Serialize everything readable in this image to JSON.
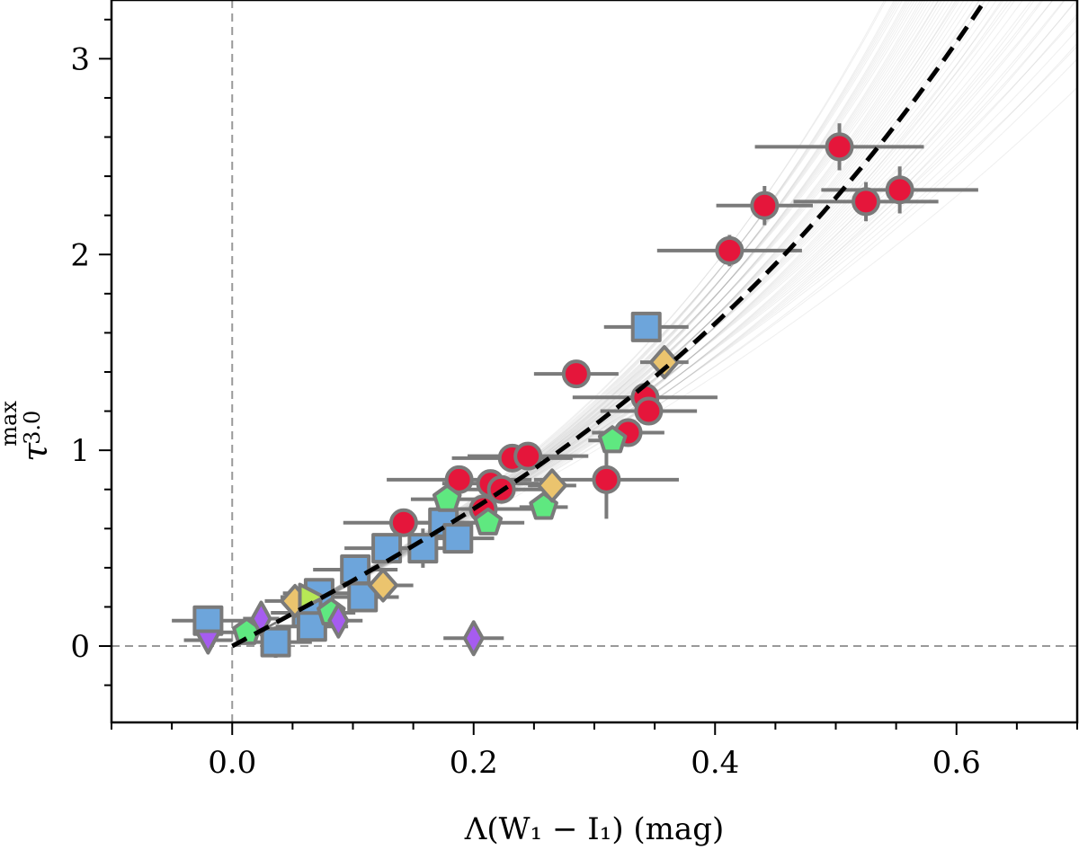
{
  "chart_data": {
    "type": "scatter",
    "title": "",
    "xlabel": "Λ(W₁ − I₁) (mag)",
    "ylabel": {
      "base": "τ",
      "sub": "3.0",
      "sup": "max"
    },
    "xlim": [
      -0.1,
      0.7
    ],
    "ylim": [
      -0.39,
      3.3
    ],
    "xticks": [
      0.0,
      0.2,
      0.4,
      0.6
    ],
    "xtick_labels": [
      "0.0",
      "0.2",
      "0.4",
      "0.6"
    ],
    "yticks": [
      0,
      1,
      2,
      3
    ],
    "ytick_labels": [
      "0",
      "1",
      "2",
      "3"
    ],
    "grid": false,
    "reference_lines": {
      "x": 0,
      "y": 0
    },
    "fit": {
      "name": "best fit",
      "a": 3.3,
      "b": 2.0,
      "style": "dashed",
      "color": "#000000"
    },
    "fit_samples": {
      "count": 60,
      "color": "#7a7a7a"
    },
    "colors": {
      "red": "#e5163b",
      "blue": "#6da5db",
      "green": "#5fe880",
      "yellow": "#ebc46e",
      "purple": "#a65cf0",
      "lime": "#b7e855",
      "edge": "#7a7a7a"
    },
    "series": [
      {
        "name": "red circles",
        "marker": "circle",
        "color": "#e5163b",
        "points": [
          {
            "x": 0.503,
            "y": 2.55,
            "xerr": 0.07,
            "yerr": 0.12
          },
          {
            "x": 0.441,
            "y": 2.25,
            "xerr": 0.04,
            "yerr": 0.1
          },
          {
            "x": 0.525,
            "y": 2.27,
            "xerr": 0.06,
            "yerr": 0.1
          },
          {
            "x": 0.553,
            "y": 2.33,
            "xerr": 0.065,
            "yerr": 0.12
          },
          {
            "x": 0.412,
            "y": 2.02,
            "xerr": 0.06,
            "yerr": 0.08
          },
          {
            "x": 0.285,
            "y": 1.39,
            "xerr": 0.035,
            "yerr": 0.06
          },
          {
            "x": 0.342,
            "y": 1.27,
            "xerr": 0.06,
            "yerr": 0.06
          },
          {
            "x": 0.345,
            "y": 1.2,
            "xerr": 0.04,
            "yerr": 0.06
          },
          {
            "x": 0.328,
            "y": 1.09,
            "xerr": 0.03,
            "yerr": 0.06
          },
          {
            "x": 0.31,
            "y": 0.85,
            "xerr": 0.06,
            "yerr": 0.2
          },
          {
            "x": 0.232,
            "y": 0.96,
            "xerr": 0.05,
            "yerr": 0.06
          },
          {
            "x": 0.245,
            "y": 0.97,
            "xerr": 0.05,
            "yerr": 0.06
          },
          {
            "x": 0.188,
            "y": 0.85,
            "xerr": 0.06,
            "yerr": 0.06
          },
          {
            "x": 0.214,
            "y": 0.83,
            "xerr": 0.04,
            "yerr": 0.06
          },
          {
            "x": 0.223,
            "y": 0.8,
            "xerr": 0.04,
            "yerr": 0.06
          },
          {
            "x": 0.208,
            "y": 0.7,
            "xerr": 0.04,
            "yerr": 0.06
          },
          {
            "x": 0.142,
            "y": 0.63,
            "xerr": 0.05,
            "yerr": 0.06
          }
        ]
      },
      {
        "name": "blue squares",
        "marker": "square",
        "color": "#6da5db",
        "points": [
          {
            "x": 0.343,
            "y": 1.63,
            "xerr": 0.035,
            "yerr": 0.06
          },
          {
            "x": 0.175,
            "y": 0.63,
            "xerr": 0.04,
            "yerr": 0.06
          },
          {
            "x": 0.158,
            "y": 0.5,
            "xerr": 0.04,
            "yerr": 0.1
          },
          {
            "x": 0.187,
            "y": 0.55,
            "xerr": 0.03,
            "yerr": 0.06
          },
          {
            "x": 0.128,
            "y": 0.5,
            "xerr": 0.035,
            "yerr": 0.06
          },
          {
            "x": 0.102,
            "y": 0.39,
            "xerr": 0.035,
            "yerr": 0.06
          },
          {
            "x": 0.108,
            "y": 0.25,
            "xerr": 0.03,
            "yerr": 0.06
          },
          {
            "x": 0.072,
            "y": 0.27,
            "xerr": 0.03,
            "yerr": 0.06
          },
          {
            "x": 0.062,
            "y": 0.17,
            "xerr": 0.03,
            "yerr": 0.06
          },
          {
            "x": 0.066,
            "y": 0.1,
            "xerr": 0.03,
            "yerr": 0.06
          },
          {
            "x": 0.036,
            "y": 0.02,
            "xerr": 0.03,
            "yerr": 0.08
          },
          {
            "x": -0.02,
            "y": 0.13,
            "xerr": 0.03,
            "yerr": 0.06
          }
        ]
      },
      {
        "name": "green pentagons",
        "marker": "pentagon",
        "color": "#5fe880",
        "points": [
          {
            "x": 0.315,
            "y": 1.05,
            "xerr": 0.02,
            "yerr": 0.05
          },
          {
            "x": 0.178,
            "y": 0.75,
            "xerr": 0.03,
            "yerr": 0.05
          },
          {
            "x": 0.212,
            "y": 0.63,
            "xerr": 0.03,
            "yerr": 0.05
          },
          {
            "x": 0.258,
            "y": 0.71,
            "xerr": 0.02,
            "yerr": 0.05
          },
          {
            "x": 0.082,
            "y": 0.17,
            "xerr": 0.02,
            "yerr": 0.04
          },
          {
            "x": 0.012,
            "y": 0.07,
            "xerr": 0.02,
            "yerr": 0.04
          }
        ]
      },
      {
        "name": "yellow diamonds",
        "marker": "diamond",
        "color": "#ebc46e",
        "points": [
          {
            "x": 0.358,
            "y": 1.45,
            "xerr": 0.02,
            "yerr": 0.05
          },
          {
            "x": 0.265,
            "y": 0.82,
            "xerr": 0.02,
            "yerr": 0.05
          },
          {
            "x": 0.125,
            "y": 0.31,
            "xerr": 0.025,
            "yerr": 0.05
          },
          {
            "x": 0.052,
            "y": 0.23,
            "xerr": 0.025,
            "yerr": 0.05
          }
        ]
      },
      {
        "name": "purple diamonds",
        "marker": "thin-diamond",
        "color": "#a65cf0",
        "points": [
          {
            "x": 0.2,
            "y": 0.04,
            "xerr": 0.025,
            "yerr": 0.03
          },
          {
            "x": 0.088,
            "y": 0.13,
            "xerr": 0.02,
            "yerr": 0.04
          },
          {
            "x": 0.024,
            "y": 0.14,
            "xerr": 0.015,
            "yerr": 0.03
          }
        ]
      },
      {
        "name": "purple triangles",
        "marker": "triangle-down",
        "color": "#a65cf0",
        "points": [
          {
            "x": -0.02,
            "y": 0.03,
            "xerr": 0.02,
            "yerr": 0.03
          }
        ]
      },
      {
        "name": "lime triangles",
        "marker": "triangle-right",
        "color": "#b7e855",
        "points": [
          {
            "x": 0.065,
            "y": 0.25,
            "xerr": 0.025,
            "yerr": 0.05
          }
        ]
      }
    ]
  }
}
